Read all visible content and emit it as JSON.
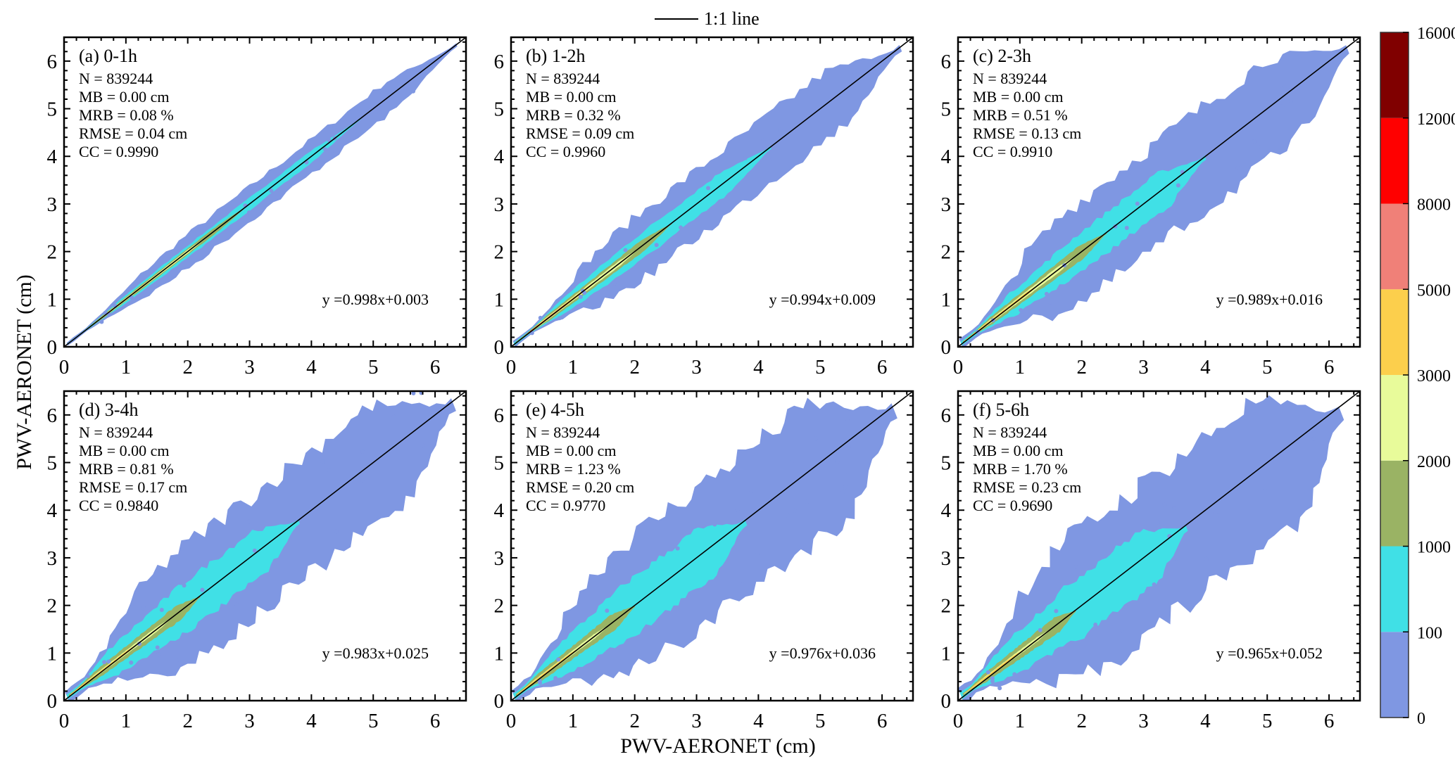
{
  "chart_data": {
    "type": "heatmap",
    "subtype": "density scatter (2D histogram) with 1:1 line and linear fit",
    "xlabel": "PWV-AERONET (cm)",
    "ylabel": "PWV-AERONET (cm)",
    "xlim": [
      0,
      6.5
    ],
    "ylim": [
      0,
      6.5
    ],
    "ticks": [
      "0",
      "1",
      "2",
      "3",
      "4",
      "5",
      "6"
    ],
    "legend": {
      "label": "1:1 line",
      "position": "top-center"
    },
    "colorbar": {
      "ticks": [
        "0",
        "100",
        "1000",
        "2000",
        "3000",
        "5000",
        "8000",
        "12000",
        "16000"
      ],
      "colors": [
        "#7f97e2",
        "#40e0e6",
        "#9ab364",
        "#e8fb9a",
        "#fccf4c",
        "#f08078",
        "#ff0000",
        "#800000"
      ],
      "position": "right"
    },
    "panels": [
      {
        "title": "(a) 0-1h",
        "N": "N = 839244",
        "MB": "MB = 0.00 cm",
        "MRB": "MRB = 0.08 %",
        "RMSE": "RMSE = 0.04 cm",
        "CC": "CC = 0.9990",
        "fit": "y =0.998x+0.003",
        "slope": 0.998,
        "intercept": 0.003
      },
      {
        "title": "(b) 1-2h",
        "N": "N = 839244",
        "MB": "MB = 0.00 cm",
        "MRB": "MRB = 0.32 %",
        "RMSE": "RMSE = 0.09 cm",
        "CC": "CC = 0.9960",
        "fit": "y =0.994x+0.009",
        "slope": 0.994,
        "intercept": 0.009
      },
      {
        "title": "(c) 2-3h",
        "N": "N = 839244",
        "MB": "MB = 0.00 cm",
        "MRB": "MRB = 0.51 %",
        "RMSE": "RMSE = 0.13 cm",
        "CC": "CC = 0.9910",
        "fit": "y =0.989x+0.016",
        "slope": 0.989,
        "intercept": 0.016
      },
      {
        "title": "(d) 3-4h",
        "N": "N = 839244",
        "MB": "MB = 0.00 cm",
        "MRB": "MRB = 0.81 %",
        "RMSE": "RMSE = 0.17 cm",
        "CC": "CC = 0.9840",
        "fit": "y =0.983x+0.025",
        "slope": 0.983,
        "intercept": 0.025
      },
      {
        "title": "(e) 4-5h",
        "N": "N = 839244",
        "MB": "MB = 0.00 cm",
        "MRB": "MRB = 1.23 %",
        "RMSE": "RMSE = 0.20 cm",
        "CC": "CC = 0.9770",
        "fit": "y =0.976x+0.036",
        "slope": 0.976,
        "intercept": 0.036
      },
      {
        "title": "(f) 5-6h",
        "N": "N = 839244",
        "MB": "MB = 0.00 cm",
        "MRB": "MRB = 1.70 %",
        "RMSE": "RMSE = 0.23 cm",
        "CC": "CC = 0.9690",
        "fit": "y =0.965x+0.052",
        "slope": 0.965,
        "intercept": 0.052
      }
    ]
  }
}
